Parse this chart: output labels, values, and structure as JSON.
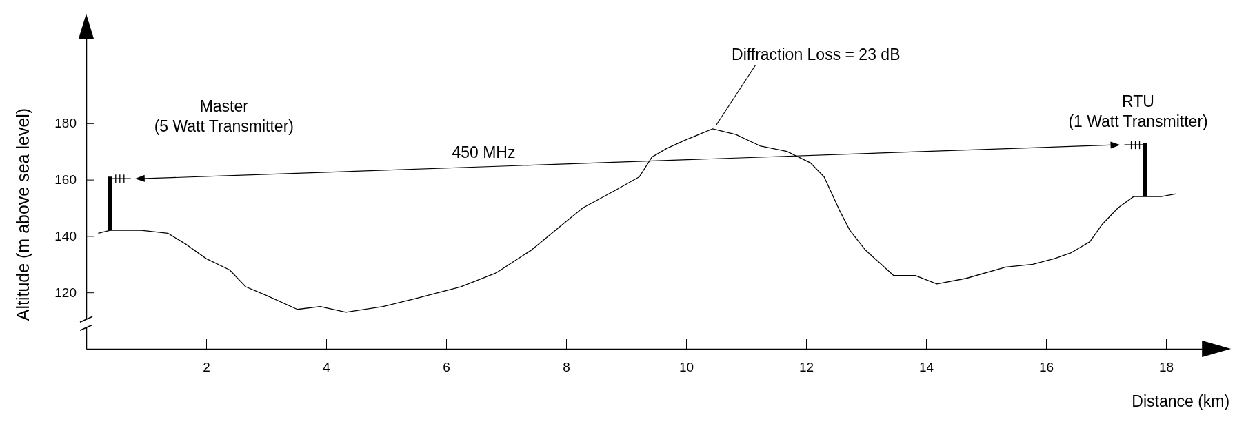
{
  "chart_data": {
    "type": "line",
    "xlabel": "Distance (km)",
    "ylabel": "Altitude (m above sea level)",
    "x": [
      0.2,
      0.4,
      0.92,
      1.36,
      1.67,
      2.0,
      2.39,
      2.66,
      3.0,
      3.52,
      3.9,
      4.33,
      4.95,
      5.52,
      6.24,
      6.84,
      7.42,
      7.99,
      8.28,
      8.8,
      9.22,
      9.43,
      9.67,
      9.98,
      10.44,
      10.83,
      11.23,
      11.68,
      12.07,
      12.3,
      12.56,
      12.73,
      12.99,
      13.46,
      13.82,
      14.18,
      14.67,
      15.33,
      15.78,
      16.14,
      16.41,
      16.73,
      16.93,
      17.2,
      17.46,
      17.65,
      17.92,
      18.17
    ],
    "series": [
      {
        "color": "#000000",
        "values": [
          141,
          142,
          142,
          141,
          137,
          132,
          128,
          122,
          119,
          114,
          115,
          113,
          115,
          118,
          122,
          127,
          135,
          145,
          150,
          156,
          161,
          168,
          171,
          174,
          178,
          176,
          172,
          170,
          166,
          161,
          149,
          142,
          135,
          126,
          126,
          123,
          125,
          129,
          130,
          132,
          134,
          138,
          144,
          150,
          154,
          154,
          154,
          155
        ]
      }
    ],
    "xlim": [
      0,
      18.6
    ],
    "ylim": [
      100,
      210
    ],
    "xticks": [
      2,
      4,
      6,
      8,
      10,
      12,
      14,
      16,
      18
    ],
    "yticks": [
      120,
      140,
      160,
      180
    ],
    "grid": false,
    "marker": "none",
    "line_style": "solid",
    "annotations": [
      "Master\n(5 Watt Transmitter)",
      {
        "text": "RTU\n(1 Watt Transmitter)",
        "x": 17.65,
        "y": 154
      },
      "450 MHz",
      {
        "text": "Diffraction Loss = 23 dB",
        "x": 10.44,
        "y": 178
      }
    ]
  }
}
